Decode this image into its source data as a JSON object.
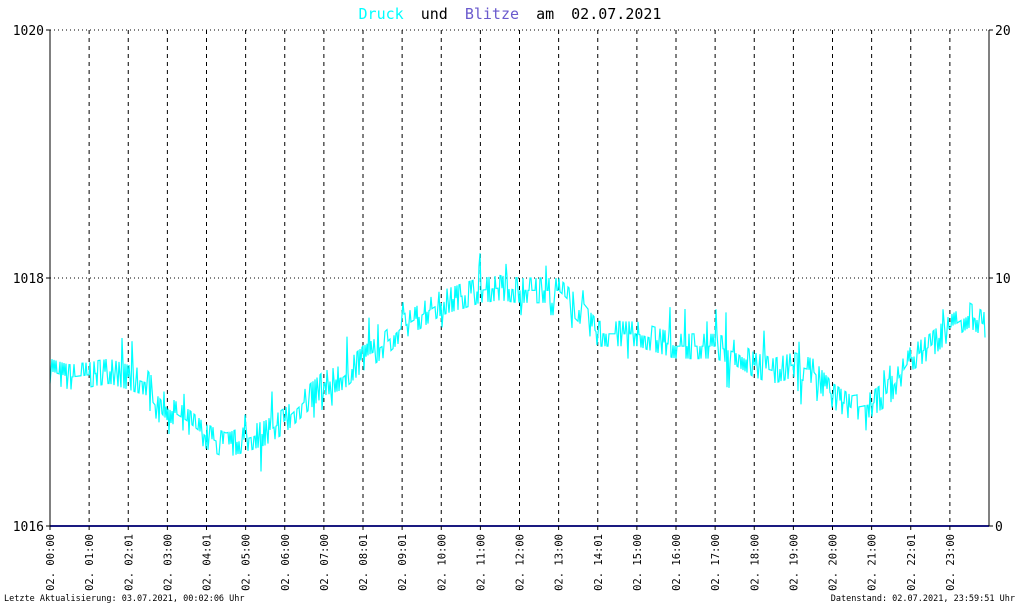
{
  "title": {
    "druck": "Druck",
    "und": "und",
    "blitze": "Blitze",
    "am": "am",
    "date": "02.07.2021"
  },
  "footer": {
    "left": "Letzte Aktualisierung: 03.07.2021, 00:02:06 Uhr",
    "right": "Datenstand: 02.07.2021, 23:59:51 Uhr"
  },
  "colors": {
    "druck": "#00ffff",
    "blitze": "#6a5acd",
    "lightning_baseline": "#1a1a80",
    "grid": "#000000"
  },
  "chart_data": {
    "type": "line",
    "title": "Druck und Blitze am 02.07.2021",
    "x_tick_labels": [
      "02. 00:00",
      "02. 01:00",
      "02. 02:01",
      "02. 03:00",
      "02. 04:01",
      "02. 05:00",
      "02. 06:00",
      "02. 07:00",
      "02. 08:01",
      "02. 09:01",
      "02. 10:00",
      "02. 11:00",
      "02. 12:00",
      "02. 13:00",
      "02. 14:01",
      "02. 15:00",
      "02. 16:00",
      "02. 17:00",
      "02. 18:00",
      "02. 19:00",
      "02. 20:00",
      "02. 21:00",
      "02. 22:01",
      "02. 23:00"
    ],
    "y_left": {
      "ticks": [
        "1016",
        "1018",
        "1020"
      ],
      "range": [
        1016,
        1020
      ]
    },
    "y_right": {
      "ticks": [
        "0",
        "10",
        "20"
      ],
      "range": [
        0,
        20
      ]
    },
    "x_range_hours": [
      0,
      24
    ],
    "grid": "dashed vertical at each hour, dotted horizontal at 1018 and 1020",
    "series": [
      {
        "name": "Druck",
        "axis": "left",
        "x": [
          0,
          0.5,
          1,
          1.5,
          2,
          2.5,
          3,
          3.5,
          4,
          4.5,
          5,
          5.5,
          6,
          6.5,
          7,
          7.5,
          8,
          8.5,
          9,
          9.5,
          10,
          10.5,
          11,
          11.5,
          12,
          12.5,
          13,
          13.5,
          14,
          14.5,
          15,
          15.5,
          16,
          16.5,
          17,
          17.5,
          18,
          18.5,
          19,
          19.5,
          20,
          20.5,
          21,
          21.5,
          22,
          22.5,
          23,
          23.5,
          24
        ],
        "values": [
          1017.25,
          1017.2,
          1017.22,
          1017.25,
          1017.2,
          1017.15,
          1016.95,
          1016.85,
          1016.72,
          1016.65,
          1016.7,
          1016.75,
          1016.85,
          1017.0,
          1017.15,
          1017.2,
          1017.35,
          1017.45,
          1017.6,
          1017.7,
          1017.8,
          1017.85,
          1017.9,
          1017.92,
          1017.9,
          1017.9,
          1017.9,
          1017.75,
          1017.55,
          1017.55,
          1017.55,
          1017.5,
          1017.45,
          1017.45,
          1017.45,
          1017.4,
          1017.3,
          1017.25,
          1017.3,
          1017.25,
          1017.05,
          1016.95,
          1016.98,
          1017.1,
          1017.35,
          1017.45,
          1017.6,
          1017.7,
          1017.6
        ]
      },
      {
        "name": "Blitze",
        "axis": "right",
        "x": [
          0,
          24
        ],
        "values": [
          0,
          0
        ]
      }
    ]
  }
}
